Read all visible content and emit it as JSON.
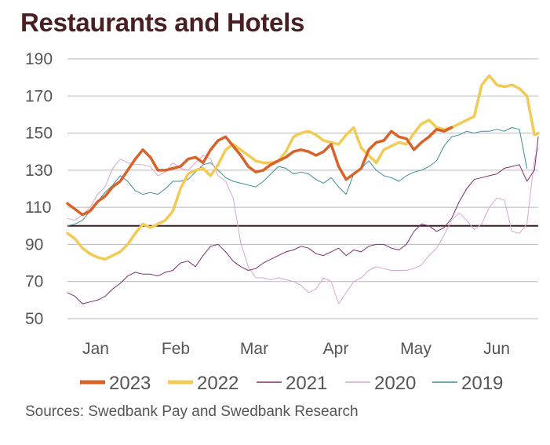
{
  "chart_data": {
    "type": "line",
    "title": "Restaurants and Hotels",
    "source": "Sources: Swedbank Pay and Swedbank Research",
    "xlabel": "",
    "ylabel": "",
    "ylim": [
      50,
      190
    ],
    "yticks": [
      50,
      70,
      90,
      110,
      130,
      150,
      170,
      190
    ],
    "x_tick_labels": [
      "Jan",
      "Feb",
      "Mar",
      "Apr",
      "May",
      "Jun"
    ],
    "xlim": [
      0,
      25
    ],
    "reference_line": 100,
    "grid": true,
    "legend_position": "bottom",
    "series": [
      {
        "name": "2019",
        "color": "#3c8e97",
        "width": 1,
        "x": [
          0,
          0.4,
          0.8,
          1.2,
          1.6,
          2,
          2.4,
          2.8,
          3.2,
          3.6,
          4,
          4.4,
          4.8,
          5.2,
          5.6,
          6,
          6.4,
          6.8,
          7.2,
          7.6,
          8,
          8.4,
          8.8,
          9.2,
          9.6,
          10,
          10.4,
          10.8,
          11.2,
          11.6,
          12,
          12.4,
          12.8,
          13.2,
          13.6,
          14,
          14.4,
          14.8,
          15.2,
          15.6,
          16,
          16.4,
          16.8,
          17.2,
          17.6,
          18,
          18.4,
          18.8,
          19.2,
          19.6,
          20,
          20.4,
          20.8,
          21.2,
          21.6,
          22,
          22.4,
          22.8,
          23.2,
          23.6,
          24,
          24.4
        ],
        "y": [
          100,
          101,
          103,
          108,
          113,
          118,
          122,
          127,
          124,
          119,
          117,
          118,
          117,
          120,
          124,
          124,
          125,
          129,
          133,
          134,
          130,
          126,
          124,
          123,
          122,
          121,
          124,
          128,
          132,
          131,
          128,
          129,
          128,
          125,
          123,
          126,
          121,
          117,
          128,
          131,
          135,
          130,
          127,
          126,
          124,
          127,
          129,
          130,
          132,
          135,
          143,
          148,
          149,
          151,
          150,
          151,
          151,
          152,
          151,
          153,
          152,
          131
        ]
      },
      {
        "name": "2020",
        "color": "#d9a6cf",
        "width": 1,
        "x": [
          0,
          0.4,
          0.8,
          1.2,
          1.6,
          2,
          2.4,
          2.8,
          3.2,
          3.6,
          4,
          4.4,
          4.8,
          5.2,
          5.6,
          6,
          6.4,
          6.8,
          7.2,
          7.6,
          8,
          8.4,
          8.8,
          9.2,
          9.6,
          10,
          10.4,
          10.8,
          11.2,
          11.6,
          12,
          12.4,
          12.8,
          13.2,
          13.6,
          14,
          14.4,
          14.8,
          15.2,
          15.6,
          16,
          16.4,
          16.8,
          17.2,
          17.6,
          18,
          18.4,
          18.8,
          19.2,
          19.6,
          20,
          20.4,
          20.8,
          21.2,
          21.6,
          22,
          22.4,
          22.8,
          23.2,
          23.6,
          24,
          24.4,
          24.8,
          25
        ],
        "y": [
          104,
          103,
          106,
          110,
          117,
          121,
          131,
          136,
          134,
          133,
          133,
          132,
          127,
          129,
          134,
          131,
          130,
          134,
          138,
          136,
          127,
          124,
          115,
          91,
          78,
          72,
          72,
          71,
          72,
          71,
          70,
          68,
          64,
          66,
          72,
          70,
          58,
          64,
          70,
          72,
          76,
          78,
          77,
          76,
          76,
          76,
          77,
          79,
          84,
          88,
          95,
          103,
          107,
          103,
          98,
          101,
          110,
          115,
          114,
          97,
          96,
          101,
          136,
          142
        ]
      },
      {
        "name": "2021",
        "color": "#7d2e6f",
        "width": 1,
        "x": [
          0,
          0.4,
          0.8,
          1.2,
          1.6,
          2,
          2.4,
          2.8,
          3.2,
          3.6,
          4,
          4.4,
          4.8,
          5.2,
          5.6,
          6,
          6.4,
          6.8,
          7.2,
          7.6,
          8,
          8.4,
          8.8,
          9.2,
          9.6,
          10,
          10.4,
          10.8,
          11.2,
          11.6,
          12,
          12.4,
          12.8,
          13.2,
          13.6,
          14,
          14.4,
          14.8,
          15.2,
          15.6,
          16,
          16.4,
          16.8,
          17.2,
          17.6,
          18,
          18.4,
          18.8,
          19.2,
          19.6,
          20,
          20.4,
          20.8,
          21.2,
          21.6,
          22,
          22.4,
          22.8,
          23.2,
          23.6,
          24,
          24.4,
          24.8,
          25
        ],
        "y": [
          64,
          62,
          58,
          59,
          60,
          62,
          66,
          69,
          73,
          75,
          74,
          74,
          73,
          75,
          76,
          80,
          81,
          78,
          84,
          89,
          90,
          86,
          81,
          78,
          76,
          77,
          80,
          82,
          84,
          86,
          87,
          89,
          88,
          85,
          84,
          86,
          88,
          84,
          87,
          86,
          89,
          90,
          90,
          88,
          87,
          90,
          97,
          101,
          100,
          97,
          99,
          104,
          113,
          120,
          125,
          126,
          127,
          128,
          131,
          132,
          133,
          124,
          130,
          148
        ]
      },
      {
        "name": "2022",
        "color": "#f2cb55",
        "width": 3.5,
        "x": [
          0,
          0.4,
          0.8,
          1.2,
          1.6,
          2,
          2.4,
          2.8,
          3.2,
          3.6,
          4,
          4.4,
          4.8,
          5.2,
          5.6,
          6,
          6.4,
          6.8,
          7.2,
          7.6,
          8,
          8.4,
          8.8,
          9.2,
          9.6,
          10,
          10.4,
          10.8,
          11.2,
          11.6,
          12,
          12.4,
          12.8,
          13.2,
          13.6,
          14,
          14.4,
          14.8,
          15.2,
          15.6,
          16,
          16.4,
          16.8,
          17.2,
          17.6,
          18,
          18.4,
          18.8,
          19.2,
          19.6,
          20,
          20.4,
          20.8,
          21.2,
          21.6,
          22,
          22.4,
          22.8,
          23.2,
          23.6,
          24,
          24.4,
          24.8,
          25
        ],
        "y": [
          96,
          93,
          88,
          85,
          83,
          82,
          84,
          86,
          90,
          96,
          101,
          99,
          101,
          103,
          108,
          120,
          128,
          130,
          131,
          127,
          133,
          141,
          144,
          141,
          138,
          135,
          134,
          134,
          135,
          140,
          148,
          150,
          151,
          149,
          146,
          145,
          144,
          149,
          153,
          142,
          138,
          134,
          141,
          143,
          145,
          144,
          150,
          155,
          157,
          153,
          152,
          153,
          155,
          157,
          159,
          176,
          181,
          176,
          175,
          176,
          174,
          170,
          149,
          150
        ]
      },
      {
        "name": "2023",
        "color": "#d9622b",
        "width": 3.5,
        "x": [
          0,
          0.4,
          0.8,
          1.2,
          1.6,
          2,
          2.4,
          2.8,
          3.2,
          3.6,
          4,
          4.4,
          4.8,
          5.2,
          5.6,
          6,
          6.4,
          6.8,
          7.2,
          7.6,
          8,
          8.4,
          8.8,
          9.2,
          9.6,
          10,
          10.4,
          10.8,
          11.2,
          11.6,
          12,
          12.4,
          12.8,
          13.2,
          13.6,
          14,
          14.4,
          14.8,
          15.2,
          15.6,
          16,
          16.4,
          16.8,
          17.2,
          17.6,
          18,
          18.4,
          18.8,
          19.2,
          19.6,
          20,
          20.4
        ],
        "y": [
          112,
          109,
          106,
          108,
          113,
          116,
          121,
          124,
          130,
          136,
          141,
          137,
          130,
          130,
          131,
          132,
          136,
          137,
          134,
          141,
          146,
          148,
          143,
          138,
          132,
          129,
          130,
          133,
          135,
          137,
          140,
          141,
          140,
          138,
          140,
          144,
          132,
          125,
          128,
          131,
          141,
          145,
          146,
          151,
          148,
          147,
          141,
          145,
          148,
          152,
          151,
          153
        ]
      }
    ]
  },
  "legend": [
    {
      "label": "2023",
      "color": "#d9622b",
      "width": 5
    },
    {
      "label": "2022",
      "color": "#f2cb55",
      "width": 5
    },
    {
      "label": "2021",
      "color": "#7d2e6f",
      "width": 1.5
    },
    {
      "label": "2020",
      "color": "#d9a6cf",
      "width": 1.5
    },
    {
      "label": "2019",
      "color": "#3c8e97",
      "width": 1.5
    }
  ]
}
